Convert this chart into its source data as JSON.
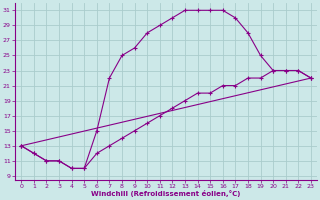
{
  "xlabel": "Windchill (Refroidissement éolien,°C)",
  "bg_color": "#cce8e8",
  "line_color": "#880088",
  "grid_color": "#aacccc",
  "xlim": [
    -0.5,
    23.5
  ],
  "ylim": [
    8.5,
    32
  ],
  "xticks": [
    0,
    1,
    2,
    3,
    4,
    5,
    6,
    7,
    8,
    9,
    10,
    11,
    12,
    13,
    14,
    15,
    16,
    17,
    18,
    19,
    20,
    21,
    22,
    23
  ],
  "yticks": [
    9,
    11,
    13,
    15,
    17,
    19,
    21,
    23,
    25,
    27,
    29,
    31
  ],
  "line1_x": [
    0,
    1,
    2,
    3,
    4,
    5,
    6,
    7,
    8,
    9,
    10,
    11,
    12,
    13,
    14,
    15,
    16,
    17,
    18,
    19,
    20,
    21,
    22,
    23
  ],
  "line1_y": [
    13,
    12,
    11,
    11,
    10,
    10,
    15,
    22,
    25,
    26,
    28,
    29,
    30,
    31,
    31,
    31,
    31,
    30,
    28,
    25,
    23,
    23,
    23,
    22
  ],
  "line2_x": [
    0,
    1,
    2,
    3,
    4,
    5,
    6,
    7,
    8,
    9,
    10,
    11,
    12,
    13,
    14,
    15,
    16,
    17,
    18,
    19,
    20,
    21,
    22,
    23
  ],
  "line2_y": [
    13,
    12,
    11,
    11,
    10,
    10,
    12,
    13,
    14,
    15,
    16,
    17,
    18,
    19,
    20,
    20,
    21,
    21,
    22,
    22,
    23,
    23,
    23,
    22
  ],
  "line3_x": [
    0,
    23
  ],
  "line3_y": [
    13,
    22
  ]
}
